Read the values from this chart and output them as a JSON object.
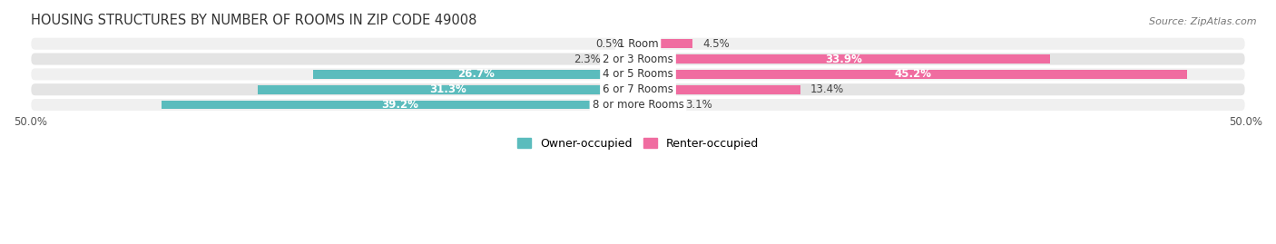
{
  "title": "HOUSING STRUCTURES BY NUMBER OF ROOMS IN ZIP CODE 49008",
  "source": "Source: ZipAtlas.com",
  "categories": [
    "1 Room",
    "2 or 3 Rooms",
    "4 or 5 Rooms",
    "6 or 7 Rooms",
    "8 or more Rooms"
  ],
  "owner_values": [
    0.5,
    2.3,
    26.7,
    31.3,
    39.2
  ],
  "renter_values": [
    4.5,
    33.9,
    45.2,
    13.4,
    3.1
  ],
  "owner_color": "#5bbcbd",
  "renter_color": "#f06ca0",
  "row_bg_even": "#f0f0f0",
  "row_bg_odd": "#e4e4e4",
  "xlim": [
    -50,
    50
  ],
  "xtick_left": -50.0,
  "xtick_right": 50.0,
  "title_fontsize": 10.5,
  "label_fontsize": 8.5,
  "legend_fontsize": 9,
  "bar_height": 0.58,
  "inside_threshold_owner": 20,
  "inside_threshold_renter": 20,
  "background_color": "#ffffff"
}
